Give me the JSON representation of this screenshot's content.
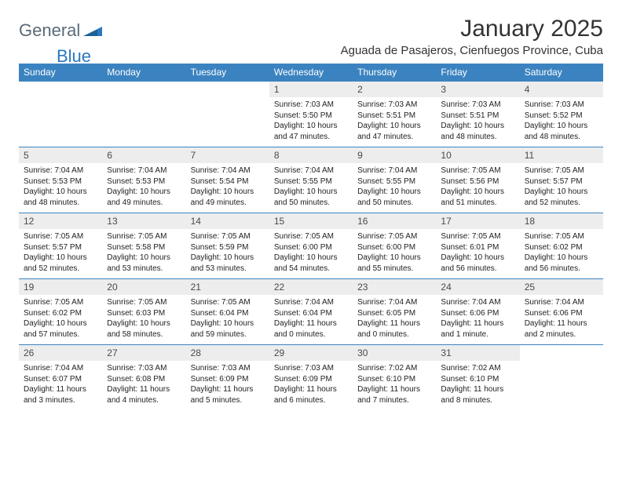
{
  "logo": {
    "part1": "General",
    "part2": "Blue"
  },
  "title": "January 2025",
  "location": "Aguada de Pasajeros, Cienfuegos Province, Cuba",
  "colors": {
    "header_bg": "#3b83c0",
    "header_text": "#ffffff",
    "daynum_bg": "#ededed",
    "daynum_text": "#4a4a4a",
    "body_text": "#222222",
    "logo_gray": "#5a6b78",
    "logo_blue": "#2a78bd",
    "border": "#3b83c0"
  },
  "typography": {
    "title_fontsize": 30,
    "location_fontsize": 15,
    "weekday_fontsize": 12,
    "daynum_fontsize": 12,
    "detail_fontsize": 10
  },
  "weekdays": [
    "Sunday",
    "Monday",
    "Tuesday",
    "Wednesday",
    "Thursday",
    "Friday",
    "Saturday"
  ],
  "weeks": [
    [
      null,
      null,
      null,
      {
        "n": "1",
        "sr": "7:03 AM",
        "ss": "5:50 PM",
        "dl": "10 hours and 47 minutes."
      },
      {
        "n": "2",
        "sr": "7:03 AM",
        "ss": "5:51 PM",
        "dl": "10 hours and 47 minutes."
      },
      {
        "n": "3",
        "sr": "7:03 AM",
        "ss": "5:51 PM",
        "dl": "10 hours and 48 minutes."
      },
      {
        "n": "4",
        "sr": "7:03 AM",
        "ss": "5:52 PM",
        "dl": "10 hours and 48 minutes."
      }
    ],
    [
      {
        "n": "5",
        "sr": "7:04 AM",
        "ss": "5:53 PM",
        "dl": "10 hours and 48 minutes."
      },
      {
        "n": "6",
        "sr": "7:04 AM",
        "ss": "5:53 PM",
        "dl": "10 hours and 49 minutes."
      },
      {
        "n": "7",
        "sr": "7:04 AM",
        "ss": "5:54 PM",
        "dl": "10 hours and 49 minutes."
      },
      {
        "n": "8",
        "sr": "7:04 AM",
        "ss": "5:55 PM",
        "dl": "10 hours and 50 minutes."
      },
      {
        "n": "9",
        "sr": "7:04 AM",
        "ss": "5:55 PM",
        "dl": "10 hours and 50 minutes."
      },
      {
        "n": "10",
        "sr": "7:05 AM",
        "ss": "5:56 PM",
        "dl": "10 hours and 51 minutes."
      },
      {
        "n": "11",
        "sr": "7:05 AM",
        "ss": "5:57 PM",
        "dl": "10 hours and 52 minutes."
      }
    ],
    [
      {
        "n": "12",
        "sr": "7:05 AM",
        "ss": "5:57 PM",
        "dl": "10 hours and 52 minutes."
      },
      {
        "n": "13",
        "sr": "7:05 AM",
        "ss": "5:58 PM",
        "dl": "10 hours and 53 minutes."
      },
      {
        "n": "14",
        "sr": "7:05 AM",
        "ss": "5:59 PM",
        "dl": "10 hours and 53 minutes."
      },
      {
        "n": "15",
        "sr": "7:05 AM",
        "ss": "6:00 PM",
        "dl": "10 hours and 54 minutes."
      },
      {
        "n": "16",
        "sr": "7:05 AM",
        "ss": "6:00 PM",
        "dl": "10 hours and 55 minutes."
      },
      {
        "n": "17",
        "sr": "7:05 AM",
        "ss": "6:01 PM",
        "dl": "10 hours and 56 minutes."
      },
      {
        "n": "18",
        "sr": "7:05 AM",
        "ss": "6:02 PM",
        "dl": "10 hours and 56 minutes."
      }
    ],
    [
      {
        "n": "19",
        "sr": "7:05 AM",
        "ss": "6:02 PM",
        "dl": "10 hours and 57 minutes."
      },
      {
        "n": "20",
        "sr": "7:05 AM",
        "ss": "6:03 PM",
        "dl": "10 hours and 58 minutes."
      },
      {
        "n": "21",
        "sr": "7:05 AM",
        "ss": "6:04 PM",
        "dl": "10 hours and 59 minutes."
      },
      {
        "n": "22",
        "sr": "7:04 AM",
        "ss": "6:04 PM",
        "dl": "11 hours and 0 minutes."
      },
      {
        "n": "23",
        "sr": "7:04 AM",
        "ss": "6:05 PM",
        "dl": "11 hours and 0 minutes."
      },
      {
        "n": "24",
        "sr": "7:04 AM",
        "ss": "6:06 PM",
        "dl": "11 hours and 1 minute."
      },
      {
        "n": "25",
        "sr": "7:04 AM",
        "ss": "6:06 PM",
        "dl": "11 hours and 2 minutes."
      }
    ],
    [
      {
        "n": "26",
        "sr": "7:04 AM",
        "ss": "6:07 PM",
        "dl": "11 hours and 3 minutes."
      },
      {
        "n": "27",
        "sr": "7:03 AM",
        "ss": "6:08 PM",
        "dl": "11 hours and 4 minutes."
      },
      {
        "n": "28",
        "sr": "7:03 AM",
        "ss": "6:09 PM",
        "dl": "11 hours and 5 minutes."
      },
      {
        "n": "29",
        "sr": "7:03 AM",
        "ss": "6:09 PM",
        "dl": "11 hours and 6 minutes."
      },
      {
        "n": "30",
        "sr": "7:02 AM",
        "ss": "6:10 PM",
        "dl": "11 hours and 7 minutes."
      },
      {
        "n": "31",
        "sr": "7:02 AM",
        "ss": "6:10 PM",
        "dl": "11 hours and 8 minutes."
      },
      null
    ]
  ],
  "labels": {
    "sunrise": "Sunrise:",
    "sunset": "Sunset:",
    "daylight": "Daylight:"
  }
}
